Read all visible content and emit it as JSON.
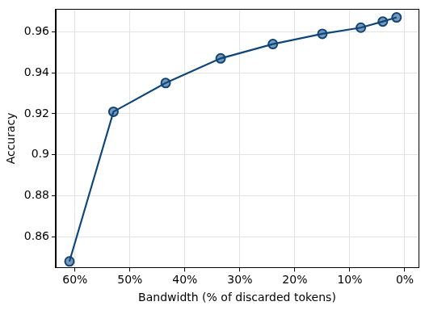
{
  "chart_data": {
    "type": "line",
    "x_label": "Bandwidth (% of discarded tokens)",
    "y_label": "Accuracy",
    "x": [
      61,
      53,
      43.5,
      33.5,
      24,
      15,
      8,
      4,
      1.5
    ],
    "values": [
      0.848,
      0.921,
      0.935,
      0.947,
      0.954,
      0.959,
      0.962,
      0.965,
      0.967
    ],
    "color": "#0e467a",
    "marker": "circle",
    "line_style": "solid",
    "xlim": [
      63.5,
      -2.5
    ],
    "xticks": [
      {
        "value": 60,
        "label": "60%"
      },
      {
        "value": 50,
        "label": "50%"
      },
      {
        "value": 40,
        "label": "40%"
      },
      {
        "value": 30,
        "label": "30%"
      },
      {
        "value": 20,
        "label": "20%"
      },
      {
        "value": 10,
        "label": "10%"
      },
      {
        "value": 0,
        "label": "0%"
      }
    ],
    "ylim": [
      0.845,
      0.971
    ],
    "yticks": [
      0.86,
      0.88,
      0.9,
      0.92,
      0.94,
      0.96
    ],
    "grid": true
  }
}
